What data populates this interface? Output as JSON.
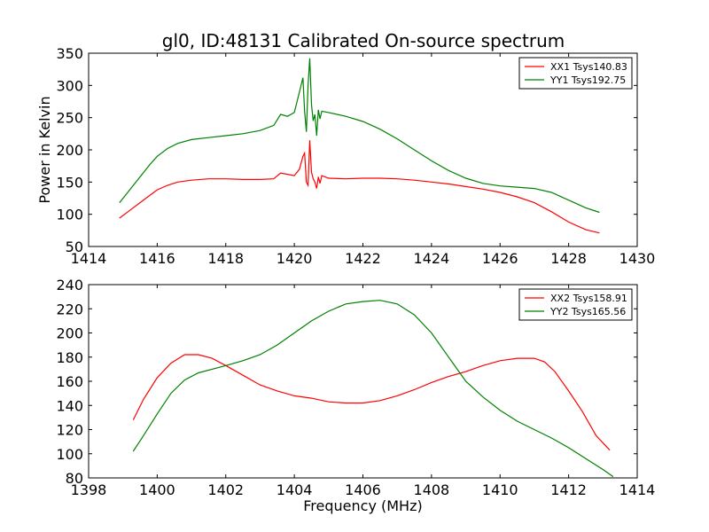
{
  "title": "gl0, ID:48131 Calibrated On-source spectrum",
  "chart_data": [
    {
      "type": "line",
      "ylabel": "Power in Kelvin",
      "xlabel": "",
      "xlim": [
        1414,
        1430
      ],
      "ylim": [
        50,
        350
      ],
      "xticks": [
        "1414",
        "1416",
        "1418",
        "1420",
        "1422",
        "1424",
        "1426",
        "1428",
        "1430"
      ],
      "yticks": [
        "50",
        "100",
        "150",
        "200",
        "250",
        "300",
        "350"
      ],
      "legend_position": "top-right",
      "series": [
        {
          "name": "XX1 Tsys140.83",
          "color": "#ff0000",
          "x": [
            1414.9,
            1415.2,
            1415.5,
            1415.8,
            1416.0,
            1416.3,
            1416.6,
            1417.0,
            1417.5,
            1418.0,
            1418.5,
            1419.0,
            1419.4,
            1419.6,
            1419.8,
            1420.0,
            1420.15,
            1420.25,
            1420.3,
            1420.35,
            1420.4,
            1420.45,
            1420.5,
            1420.55,
            1420.6,
            1420.65,
            1420.7,
            1420.75,
            1420.8,
            1421.0,
            1421.5,
            1422.0,
            1422.5,
            1423.0,
            1423.5,
            1424.0,
            1424.5,
            1425.0,
            1425.5,
            1426.0,
            1426.5,
            1427.0,
            1427.5,
            1428.0,
            1428.5,
            1428.9
          ],
          "y": [
            94,
            106,
            118,
            130,
            138,
            145,
            150,
            153,
            155,
            155,
            154,
            154,
            155,
            164,
            162,
            160,
            170,
            190,
            195,
            150,
            145,
            215,
            165,
            155,
            150,
            140,
            158,
            148,
            160,
            156,
            155,
            156,
            156,
            155,
            153,
            150,
            147,
            143,
            139,
            134,
            127,
            118,
            104,
            88,
            76,
            71
          ]
        },
        {
          "name": "YY1 Tsys192.75",
          "color": "#008000",
          "x": [
            1414.9,
            1415.2,
            1415.5,
            1415.8,
            1416.0,
            1416.3,
            1416.6,
            1417.0,
            1417.5,
            1418.0,
            1418.5,
            1419.0,
            1419.4,
            1419.6,
            1419.8,
            1420.0,
            1420.15,
            1420.25,
            1420.3,
            1420.35,
            1420.4,
            1420.45,
            1420.5,
            1420.55,
            1420.6,
            1420.65,
            1420.7,
            1420.75,
            1420.8,
            1421.0,
            1421.5,
            1422.0,
            1422.5,
            1423.0,
            1423.5,
            1424.0,
            1424.5,
            1425.0,
            1425.5,
            1426.0,
            1426.5,
            1427.0,
            1427.5,
            1428.0,
            1428.5,
            1428.9
          ],
          "y": [
            118,
            138,
            158,
            178,
            190,
            202,
            210,
            216,
            219,
            222,
            225,
            230,
            238,
            255,
            252,
            258,
            290,
            312,
            260,
            228,
            300,
            342,
            270,
            245,
            255,
            222,
            262,
            248,
            260,
            258,
            252,
            244,
            232,
            217,
            200,
            183,
            168,
            156,
            148,
            144,
            142,
            140,
            134,
            122,
            110,
            103
          ]
        }
      ]
    },
    {
      "type": "line",
      "ylabel": "",
      "xlabel": "Frequency (MHz)",
      "xlim": [
        1398,
        1414
      ],
      "ylim": [
        80,
        240
      ],
      "xticks": [
        "1398",
        "1400",
        "1402",
        "1404",
        "1406",
        "1408",
        "1410",
        "1412",
        "1414"
      ],
      "yticks": [
        "80",
        "100",
        "120",
        "140",
        "160",
        "180",
        "200",
        "220",
        "240"
      ],
      "legend_position": "top-right",
      "series": [
        {
          "name": "XX2 Tsys158.91",
          "color": "#ff0000",
          "x": [
            1399.3,
            1399.6,
            1400.0,
            1400.4,
            1400.8,
            1401.2,
            1401.6,
            1402.0,
            1402.5,
            1403.0,
            1403.5,
            1404.0,
            1404.5,
            1405.0,
            1405.5,
            1406.0,
            1406.5,
            1407.0,
            1407.5,
            1408.0,
            1408.5,
            1409.0,
            1409.5,
            1410.0,
            1410.5,
            1411.0,
            1411.3,
            1411.6,
            1412.0,
            1412.4,
            1412.8,
            1413.2
          ],
          "y": [
            128,
            145,
            163,
            175,
            182,
            182,
            179,
            173,
            165,
            157,
            152,
            148,
            146,
            143,
            142,
            142,
            144,
            148,
            153,
            159,
            164,
            168,
            173,
            177,
            179,
            179,
            176,
            168,
            152,
            135,
            115,
            103
          ]
        },
        {
          "name": "YY2 Tsys165.56",
          "color": "#008000",
          "x": [
            1399.3,
            1399.6,
            1400.0,
            1400.4,
            1400.8,
            1401.2,
            1401.6,
            1402.0,
            1402.5,
            1403.0,
            1403.5,
            1404.0,
            1404.5,
            1405.0,
            1405.5,
            1406.0,
            1406.5,
            1407.0,
            1407.5,
            1408.0,
            1408.5,
            1409.0,
            1409.5,
            1410.0,
            1410.5,
            1411.0,
            1411.5,
            1412.0,
            1412.5,
            1413.0,
            1413.3
          ],
          "y": [
            102,
            115,
            133,
            150,
            161,
            167,
            170,
            173,
            177,
            182,
            190,
            200,
            210,
            218,
            224,
            226,
            227,
            224,
            215,
            200,
            180,
            160,
            147,
            136,
            127,
            120,
            113,
            105,
            96,
            87,
            81
          ]
        }
      ]
    }
  ]
}
